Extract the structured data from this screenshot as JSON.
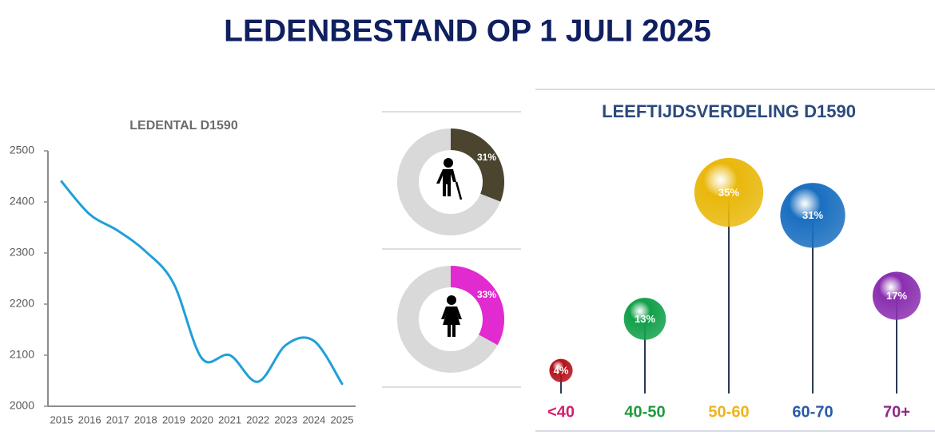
{
  "title": "LEDENBESTAND OP 1 JULI 2025",
  "chart_data": [
    {
      "type": "line",
      "title": "LEDENTAL D1590",
      "categories": [
        "2015",
        "2016",
        "2017",
        "2018",
        "2019",
        "2020",
        "2021",
        "2022",
        "2023",
        "2024",
        "2025"
      ],
      "values": [
        2440,
        2376,
        2344,
        2303,
        2240,
        2094,
        2100,
        2048,
        2120,
        2128,
        2044
      ],
      "color": "#1fa0d8",
      "ylim": [
        2000,
        2500
      ],
      "yticks": [
        2000,
        2100,
        2200,
        2300,
        2400,
        2500
      ]
    },
    {
      "type": "donut",
      "values": [
        31
      ],
      "value_labels": [
        "31%"
      ],
      "color": "#4b4530"
    },
    {
      "type": "donut",
      "values": [
        33
      ],
      "value_labels": [
        "33%"
      ],
      "color": "#e12ad0"
    },
    {
      "type": "bubble",
      "title": "LEEFTIJDSVERDELING D1590",
      "categories": [
        "<40",
        "40-50",
        "50-60",
        "60-70",
        "70+"
      ],
      "values": [
        4,
        13,
        35,
        31,
        17
      ],
      "value_labels": [
        "4%",
        "13%",
        "35%",
        "31%",
        "17%"
      ],
      "colors": [
        "#b3121b",
        "#12a04a",
        "#e9b80c",
        "#1a6fc0",
        "#8a2fb0"
      ],
      "label_colors": [
        "#d4206e",
        "#1f9a3c",
        "#f0b419",
        "#2a5aa8",
        "#8e2a86"
      ]
    }
  ]
}
